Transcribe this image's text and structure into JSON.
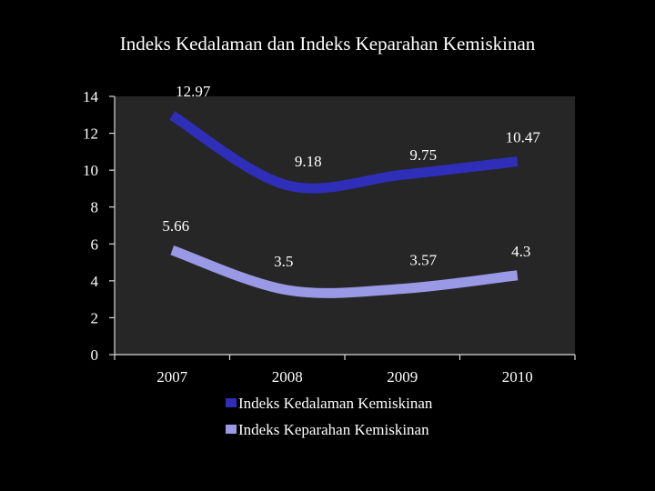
{
  "chart_data": {
    "type": "line",
    "title": "Indeks Kedalaman dan Indeks Keparahan Kemiskinan",
    "categories": [
      "2007",
      "2008",
      "2009",
      "2010"
    ],
    "series": [
      {
        "name": "Indeks Kedalaman Kemiskinan",
        "values": [
          12.97,
          9.18,
          9.75,
          10.47
        ],
        "labels": [
          "12.97",
          "9.18",
          "9.75",
          "10.47"
        ],
        "color": "#2e2eb8"
      },
      {
        "name": "Indeks Keparahan Kemiskinan",
        "values": [
          5.66,
          3.5,
          3.57,
          4.3
        ],
        "labels": [
          "5.66",
          "3.5",
          "3.57",
          "4.3"
        ],
        "color": "#9999e6"
      }
    ],
    "ylim": [
      0,
      14
    ],
    "yticks": [
      "0",
      "2",
      "4",
      "6",
      "8",
      "10",
      "12",
      "14"
    ],
    "legend_position": "bottom",
    "smooth": true,
    "grid": false
  }
}
